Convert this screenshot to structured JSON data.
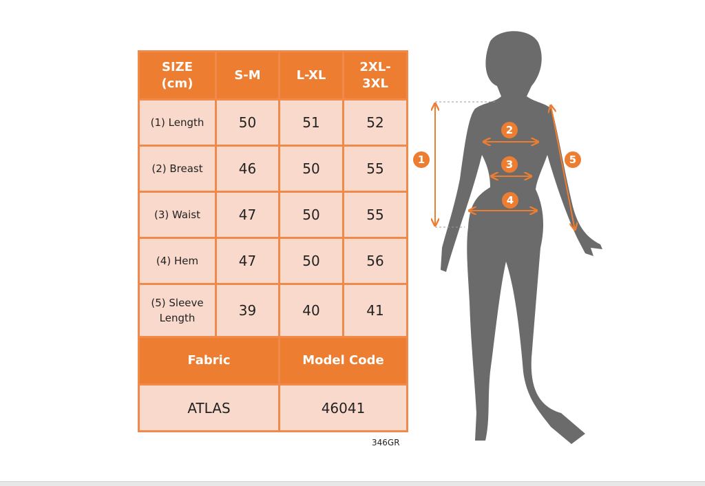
{
  "table": {
    "header": [
      "SIZE (cm)",
      "S-M",
      "L-XL",
      "2XL-3XL"
    ],
    "rows": [
      {
        "label": "(1) Length",
        "values": [
          "50",
          "51",
          "52"
        ]
      },
      {
        "label": "(2) Breast",
        "values": [
          "46",
          "50",
          "55"
        ]
      },
      {
        "label": "(3) Waist",
        "values": [
          "47",
          "50",
          "55"
        ]
      },
      {
        "label": "(4) Hem",
        "values": [
          "47",
          "50",
          "56"
        ]
      },
      {
        "label": "(5) Sleeve Length",
        "values": [
          "39",
          "40",
          "41"
        ]
      }
    ],
    "info_header": [
      "Fabric",
      "Model Code"
    ],
    "info_values": [
      "ATLAS",
      "46041"
    ]
  },
  "code": "346GR",
  "figure": {
    "markers": [
      "1",
      "2",
      "3",
      "4",
      "5"
    ]
  },
  "colors": {
    "accent": "#ed7d31",
    "cell": "#f9d9cb",
    "silhouette": "#6b6b6b"
  }
}
